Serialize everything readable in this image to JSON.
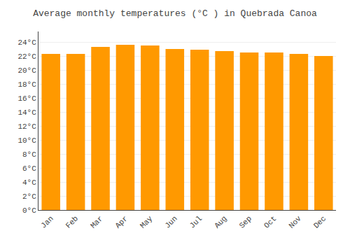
{
  "chart_data": {
    "type": "bar",
    "title": "Average monthly temperatures (°C ) in Quebrada Canoa",
    "categories": [
      "Jan",
      "Feb",
      "Mar",
      "Apr",
      "May",
      "Jun",
      "Jul",
      "Aug",
      "Sep",
      "Oct",
      "Nov",
      "Dec"
    ],
    "values": [
      22.3,
      22.3,
      23.3,
      23.6,
      23.5,
      23.0,
      22.9,
      22.7,
      22.5,
      22.5,
      22.3,
      22.0
    ],
    "color": "#FF9900",
    "ylim": [
      0,
      25.5
    ],
    "yticks": [
      {
        "value": 0,
        "label": "0°C"
      },
      {
        "value": 2,
        "label": "2°C"
      },
      {
        "value": 4,
        "label": "4°C"
      },
      {
        "value": 6,
        "label": "6°C"
      },
      {
        "value": 8,
        "label": "8°C"
      },
      {
        "value": 10,
        "label": "10°C"
      },
      {
        "value": 12,
        "label": "12°C"
      },
      {
        "value": 14,
        "label": "14°C"
      },
      {
        "value": 16,
        "label": "16°C"
      },
      {
        "value": 18,
        "label": "18°C"
      },
      {
        "value": 20,
        "label": "20°C"
      },
      {
        "value": 22,
        "label": "22°C"
      },
      {
        "value": 24,
        "label": "24°C"
      }
    ],
    "grid": true
  }
}
